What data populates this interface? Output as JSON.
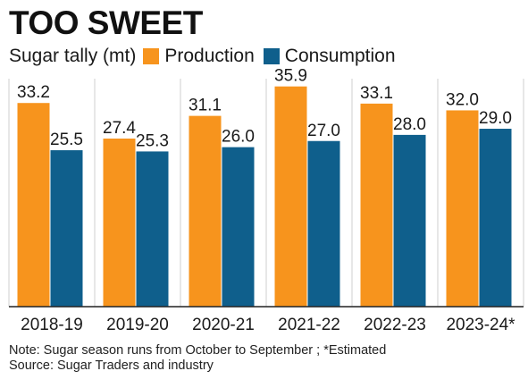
{
  "header": {
    "title": "TOO SWEET",
    "units_label": "Sugar tally (mt)"
  },
  "chart_data": {
    "type": "bar",
    "categories": [
      "2018-19",
      "2019-20",
      "2020-21",
      "2021-22",
      "2022-23",
      "2023-24*"
    ],
    "series": [
      {
        "name": "Production",
        "values": [
          33.2,
          27.4,
          31.1,
          35.9,
          33.1,
          32.0
        ],
        "labels": [
          "33.2",
          "27.4",
          "31.1",
          "35.9",
          "33.1",
          "32.0"
        ]
      },
      {
        "name": "Consumption",
        "values": [
          25.5,
          25.3,
          26.0,
          27.0,
          28.0,
          29.0
        ],
        "labels": [
          "25.5",
          "25.3",
          "26.0",
          "27.0",
          "28.0",
          "29.0"
        ]
      }
    ],
    "title": "TOO SWEET",
    "ylabel": "Sugar tally (mt)",
    "ylim": [
      0,
      36
    ],
    "grid": false,
    "legend": "top-left",
    "colors": {
      "Production": "#f7941d",
      "Consumption": "#0f5f8c"
    }
  },
  "footer": {
    "note": "Note: Sugar season runs from October to September ; *Estimated",
    "source": "Source: Sugar Traders and industry"
  }
}
